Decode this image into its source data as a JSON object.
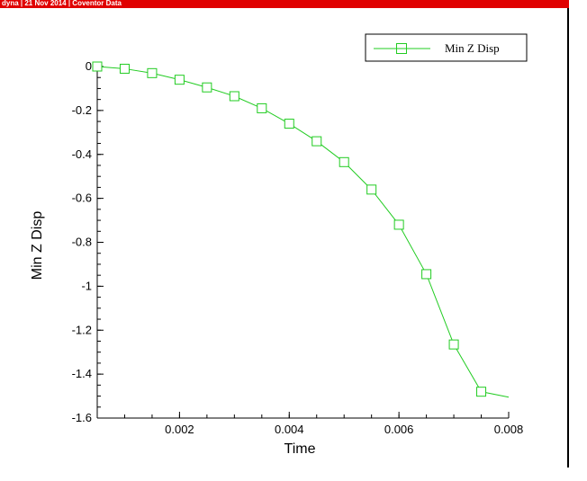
{
  "header": {
    "text": "dyna  |  21 Nov 2014  |  Coventor Data"
  },
  "colors": {
    "header_bar": "#e00000",
    "series": "#22cc22",
    "axis": "#000000"
  },
  "chart_data": {
    "type": "line",
    "title": "",
    "xlabel": "Time",
    "ylabel": "Min Z Disp",
    "xlim": [
      0.0005,
      0.008
    ],
    "ylim": [
      -1.6,
      0
    ],
    "x_ticks": [
      0.002,
      0.004,
      0.006,
      0.008
    ],
    "x_tick_labels": [
      "0.002",
      "0.004",
      "0.006",
      "0.008"
    ],
    "y_ticks": [
      0,
      -0.2,
      -0.4,
      -0.6,
      -0.8,
      -1,
      -1.2,
      -1.4,
      -1.6
    ],
    "y_tick_labels": [
      "0",
      "-0.2",
      "-0.4",
      "-0.6",
      "-0.8",
      "-1",
      "-1.2",
      "-1.4",
      "-1.6"
    ],
    "grid": false,
    "legend": {
      "position": "top-right",
      "entries": [
        "Min Z Disp"
      ]
    },
    "series": [
      {
        "name": "Min Z Disp",
        "marker": "square",
        "x": [
          0.0005,
          0.001,
          0.0015,
          0.002,
          0.0025,
          0.003,
          0.0035,
          0.004,
          0.0045,
          0.005,
          0.0055,
          0.006,
          0.0065,
          0.007,
          0.0075
        ],
        "y": [
          0,
          -0.01,
          -0.03,
          -0.06,
          -0.095,
          -0.135,
          -0.19,
          -0.26,
          -0.34,
          -0.435,
          -0.56,
          -0.72,
          -0.945,
          -1.265,
          -1.48
        ],
        "line_end": {
          "x": 0.008,
          "y": -1.505
        }
      }
    ]
  }
}
